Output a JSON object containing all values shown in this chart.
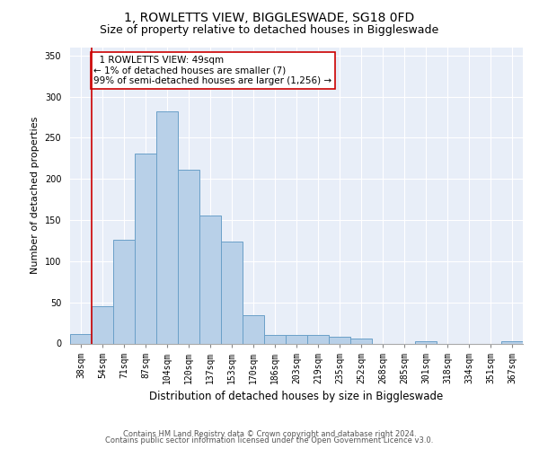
{
  "title": "1, ROWLETTS VIEW, BIGGLESWADE, SG18 0FD",
  "subtitle": "Size of property relative to detached houses in Biggleswade",
  "xlabel": "Distribution of detached houses by size in Biggleswade",
  "ylabel": "Number of detached properties",
  "categories": [
    "38sqm",
    "54sqm",
    "71sqm",
    "87sqm",
    "104sqm",
    "120sqm",
    "137sqm",
    "153sqm",
    "170sqm",
    "186sqm",
    "203sqm",
    "219sqm",
    "235sqm",
    "252sqm",
    "268sqm",
    "285sqm",
    "301sqm",
    "318sqm",
    "334sqm",
    "351sqm",
    "367sqm"
  ],
  "values": [
    12,
    45,
    126,
    231,
    282,
    211,
    156,
    124,
    34,
    10,
    10,
    10,
    8,
    6,
    0,
    0,
    3,
    0,
    0,
    0,
    3
  ],
  "bar_color": "#b8d0e8",
  "bar_edge_color": "#6aa0c8",
  "vline_x": 0.5,
  "vline_color": "#cc0000",
  "annotation_text": "  1 ROWLETTS VIEW: 49sqm\n← 1% of detached houses are smaller (7)\n99% of semi-detached houses are larger (1,256) →",
  "annotation_box_color": "#ffffff",
  "annotation_box_edge_color": "#cc0000",
  "ylim": [
    0,
    360
  ],
  "yticks": [
    0,
    50,
    100,
    150,
    200,
    250,
    300,
    350
  ],
  "bg_color": "#e8eef8",
  "footer_line1": "Contains HM Land Registry data © Crown copyright and database right 2024.",
  "footer_line2": "Contains public sector information licensed under the Open Government Licence v3.0.",
  "title_fontsize": 10,
  "subtitle_fontsize": 9,
  "tick_fontsize": 7,
  "ylabel_fontsize": 8,
  "xlabel_fontsize": 8.5,
  "footer_fontsize": 6,
  "annotation_fontsize": 7.5
}
